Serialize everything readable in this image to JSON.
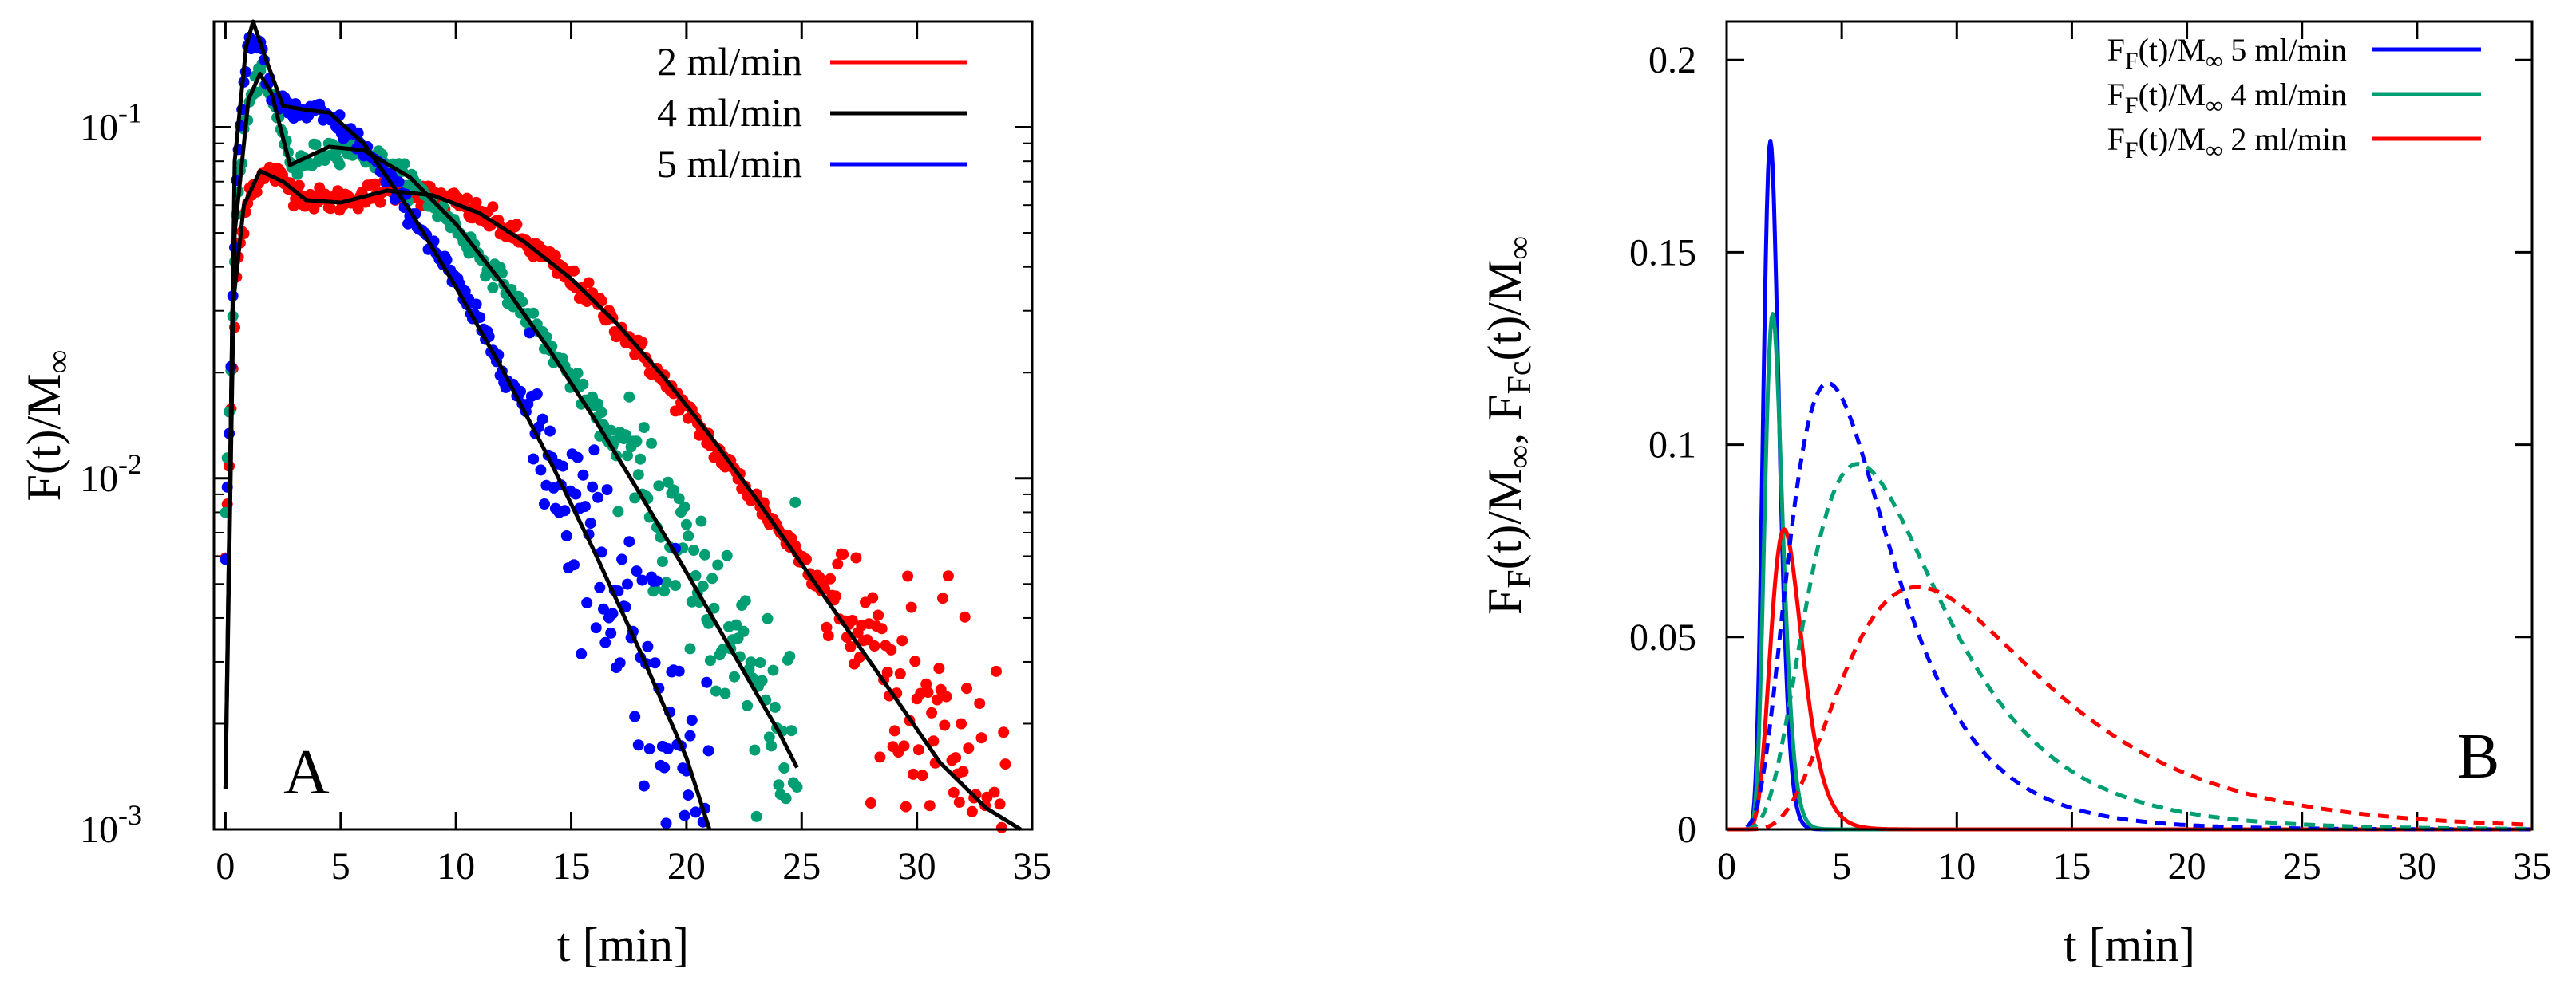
{
  "chart_data": [
    {
      "panel": "A",
      "type": "scatter",
      "yscale": "log",
      "xlim": [
        -0.5,
        35
      ],
      "ylim": [
        0.001,
        0.2
      ],
      "xlabel": "t [min]",
      "ylabel_main": "F(t)/M",
      "ylabel_sub": "∞",
      "xticks": [
        "0",
        "5",
        "10",
        "15",
        "20",
        "25",
        "30",
        "35"
      ],
      "xtick_values": [
        0,
        5,
        10,
        15,
        20,
        25,
        30,
        35
      ],
      "yticks": [
        {
          "base": "10",
          "exp": "-1",
          "value": 0.1
        },
        {
          "base": "10",
          "exp": "-2",
          "value": 0.01
        },
        {
          "base": "10",
          "exp": "-3",
          "value": 0.001
        }
      ],
      "legend_position": "top-right",
      "series": [
        {
          "name": "2 ml/min",
          "color": "#ff0000",
          "tau_decay": 5.3,
          "noise_from": 26,
          "points": [
            [
              0,
              0.006
            ],
            [
              0.5,
              0.04
            ],
            [
              1,
              0.066
            ],
            [
              2,
              0.075
            ],
            [
              3,
              0.066
            ],
            [
              4,
              0.062
            ],
            [
              5,
              0.062
            ],
            [
              6,
              0.064
            ],
            [
              7,
              0.066
            ],
            [
              8,
              0.066
            ],
            [
              10,
              0.061
            ],
            [
              12,
              0.052
            ],
            [
              14,
              0.042
            ],
            [
              16,
              0.032
            ],
            [
              18,
              0.023
            ],
            [
              20,
              0.0155
            ],
            [
              22,
              0.0105
            ],
            [
              24,
              0.0072
            ],
            [
              26,
              0.0049
            ],
            [
              28,
              0.0033
            ],
            [
              30,
              0.0022
            ],
            [
              32,
              0.0015
            ],
            [
              34,
              0.00105
            ]
          ]
        },
        {
          "name": "4 ml/min",
          "color": "#009e73",
          "tau_decay": 3.6,
          "noise_from": 17,
          "points": [
            [
              0,
              0.008
            ],
            [
              0.5,
              0.06
            ],
            [
              1,
              0.12
            ],
            [
              1.5,
              0.14
            ],
            [
              2,
              0.12
            ],
            [
              3,
              0.075
            ],
            [
              4,
              0.084
            ],
            [
              5,
              0.088
            ],
            [
              6,
              0.085
            ],
            [
              8,
              0.07
            ],
            [
              10,
              0.052
            ],
            [
              12,
              0.036
            ],
            [
              14,
              0.024
            ],
            [
              16,
              0.0155
            ],
            [
              18,
              0.0095
            ],
            [
              20,
              0.0058
            ],
            [
              22,
              0.0035
            ],
            [
              24,
              0.0021
            ],
            [
              24.8,
              0.0016
            ]
          ]
        },
        {
          "name": "5 ml/min",
          "color": "#0000ff",
          "tau_decay": 2.5,
          "noise_from": 13,
          "points": [
            [
              0,
              0.006
            ],
            [
              0.5,
              0.08
            ],
            [
              1,
              0.18
            ],
            [
              1.5,
              0.17
            ],
            [
              2,
              0.12
            ],
            [
              3,
              0.11
            ],
            [
              4,
              0.11
            ],
            [
              5,
              0.1
            ],
            [
              6,
              0.088
            ],
            [
              8,
              0.058
            ],
            [
              10,
              0.036
            ],
            [
              12,
              0.021
            ],
            [
              14,
              0.012
            ],
            [
              16,
              0.0064
            ],
            [
              18,
              0.0035
            ],
            [
              20,
              0.0018
            ],
            [
              21,
              0.0013
            ]
          ]
        }
      ],
      "fit_label": "4 ml/min",
      "fit_color": "#000000",
      "fits": [
        [
          [
            0,
            0.0013
          ],
          [
            0.3,
            0.03
          ],
          [
            0.8,
            0.06
          ],
          [
            1.5,
            0.075
          ],
          [
            2.5,
            0.07
          ],
          [
            3.5,
            0.062
          ],
          [
            5,
            0.061
          ],
          [
            7,
            0.066
          ],
          [
            9,
            0.064
          ],
          [
            11,
            0.057
          ],
          [
            13,
            0.047
          ],
          [
            15,
            0.037
          ],
          [
            17,
            0.0275
          ],
          [
            19,
            0.0195
          ],
          [
            21,
            0.0133
          ],
          [
            23,
            0.0088
          ],
          [
            25,
            0.0057
          ],
          [
            27,
            0.0037
          ],
          [
            29,
            0.0024
          ],
          [
            31,
            0.00155
          ],
          [
            33,
            0.00115
          ],
          [
            34.5,
            0.001
          ]
        ],
        [
          [
            0,
            0.0013
          ],
          [
            0.4,
            0.05
          ],
          [
            1,
            0.12
          ],
          [
            1.5,
            0.142
          ],
          [
            2,
            0.125
          ],
          [
            2.8,
            0.078
          ],
          [
            3.5,
            0.082
          ],
          [
            4.5,
            0.088
          ],
          [
            6,
            0.086
          ],
          [
            8,
            0.072
          ],
          [
            10,
            0.053
          ],
          [
            12,
            0.036
          ],
          [
            14,
            0.0235
          ],
          [
            16,
            0.0148
          ],
          [
            18,
            0.009
          ],
          [
            20,
            0.0054
          ],
          [
            22,
            0.0032
          ],
          [
            24,
            0.0019
          ],
          [
            24.8,
            0.0015
          ]
        ],
        [
          [
            0,
            0.0013
          ],
          [
            0.4,
            0.08
          ],
          [
            0.9,
            0.17
          ],
          [
            1.2,
            0.2
          ],
          [
            1.7,
            0.16
          ],
          [
            2.5,
            0.115
          ],
          [
            3.5,
            0.112
          ],
          [
            4.5,
            0.11
          ],
          [
            6,
            0.09
          ],
          [
            8,
            0.058
          ],
          [
            10,
            0.035
          ],
          [
            12,
            0.0205
          ],
          [
            14,
            0.0115
          ],
          [
            16,
            0.0062
          ],
          [
            18,
            0.0032
          ],
          [
            20,
            0.0016
          ],
          [
            21,
            0.001
          ]
        ]
      ]
    },
    {
      "panel": "B",
      "type": "line",
      "xlim": [
        0,
        35
      ],
      "ylim": [
        0,
        0.21
      ],
      "xlabel": "t [min]",
      "ylabel": {
        "p1": "F",
        "p1s": "F",
        "p2": "(t)/M",
        "p2s": "∞",
        "p3": ", F",
        "p3s": "Fc",
        "p4": "(t)/M",
        "p4s": "∞"
      },
      "xticks": [
        "0",
        "5",
        "10",
        "15",
        "20",
        "25",
        "30",
        "35"
      ],
      "xtick_values": [
        0,
        5,
        10,
        15,
        20,
        25,
        30,
        35
      ],
      "yticks": [
        "0",
        "0.05",
        "0.1",
        "0.15",
        "0.2"
      ],
      "ytick_values": [
        0,
        0.05,
        0.1,
        0.15,
        0.2
      ],
      "legend_position": "top-right",
      "legend": [
        {
          "main": "F",
          "sub": "F",
          "mid": "(t)/M",
          "sub2": "∞",
          "tail": " 5 ml/min",
          "color": "#0000ff"
        },
        {
          "main": "F",
          "sub": "F",
          "mid": "(t)/M",
          "sub2": "∞",
          "tail": " 4 ml/min",
          "color": "#009e73"
        },
        {
          "main": "F",
          "sub": "F",
          "mid": "(t)/M",
          "sub2": "∞",
          "tail": " 2 ml/min",
          "color": "#ff0000"
        }
      ],
      "series": [
        {
          "name": "F_F 5 ml/min",
          "style": "solid",
          "color": "#0000ff",
          "peak_t": 1.9,
          "peak": 0.179,
          "width": 0.55
        },
        {
          "name": "F_F 4 ml/min",
          "style": "solid",
          "color": "#009e73",
          "peak_t": 2.0,
          "peak": 0.134,
          "width": 0.62
        },
        {
          "name": "F_F 2 ml/min",
          "style": "solid",
          "color": "#ff0000",
          "peak_t": 2.5,
          "peak": 0.078,
          "width": 1.1
        },
        {
          "name": "F_Fc 5 ml/min",
          "style": "dashed",
          "color": "#0000ff",
          "peak_t": 4.4,
          "peak": 0.116,
          "width": 3.5
        },
        {
          "name": "F_Fc 4 ml/min",
          "style": "dashed",
          "color": "#009e73",
          "peak_t": 5.7,
          "peak": 0.095,
          "width": 4.6
        },
        {
          "name": "F_Fc 2 ml/min",
          "style": "dashed",
          "color": "#ff0000",
          "peak_t": 8.3,
          "peak": 0.063,
          "width": 6.8
        }
      ]
    }
  ]
}
